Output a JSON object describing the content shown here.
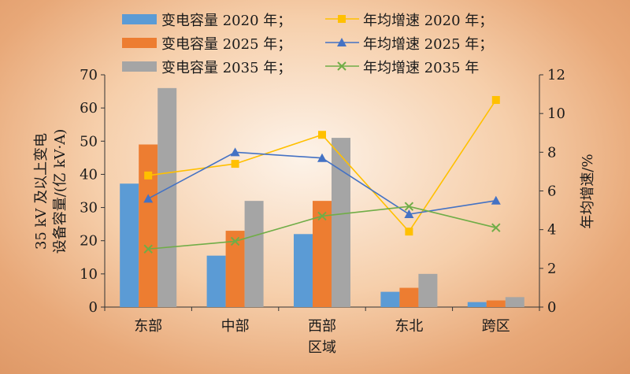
{
  "chart_data": {
    "type": "bar",
    "categories": [
      "东部",
      "中部",
      "西部",
      "东北",
      "跨区"
    ],
    "xlabel": "区域",
    "ylabel_line1": "35 kV 及以上变电",
    "ylabel_line2": "设备容量/(亿 kV·A)",
    "y2label": "年均增速/%",
    "ylim": [
      0,
      70
    ],
    "y_ticks": [
      0,
      10,
      20,
      30,
      40,
      50,
      60,
      70
    ],
    "y2lim": [
      0,
      12
    ],
    "y2_ticks": [
      0,
      2,
      4,
      6,
      8,
      10,
      12
    ],
    "bar_series": [
      {
        "name": "变电容量 2020 年；",
        "color": "#5b9bd5",
        "values": [
          37.2,
          15.5,
          22,
          4.6,
          1.5
        ]
      },
      {
        "name": "变电容量 2025 年；",
        "color": "#ed7d31",
        "values": [
          49,
          23,
          32,
          5.8,
          2
        ]
      },
      {
        "name": "变电容量 2035 年；",
        "color": "#a5a5a5",
        "values": [
          66,
          32,
          51,
          10,
          3
        ]
      }
    ],
    "line_series": [
      {
        "name": "年均增速 2020 年；",
        "color": "#ffc000",
        "marker": "square",
        "values": [
          6.8,
          7.4,
          8.9,
          3.9,
          10.7
        ]
      },
      {
        "name": "年均增速 2025 年；",
        "color": "#4472c4",
        "marker": "triangle",
        "values": [
          5.6,
          8.0,
          7.7,
          4.8,
          5.5
        ]
      },
      {
        "name": "年均增速 2035 年",
        "color": "#70ad47",
        "marker": "x",
        "values": [
          3.0,
          3.4,
          4.7,
          5.2,
          4.1
        ]
      }
    ],
    "legend_position": "top"
  }
}
